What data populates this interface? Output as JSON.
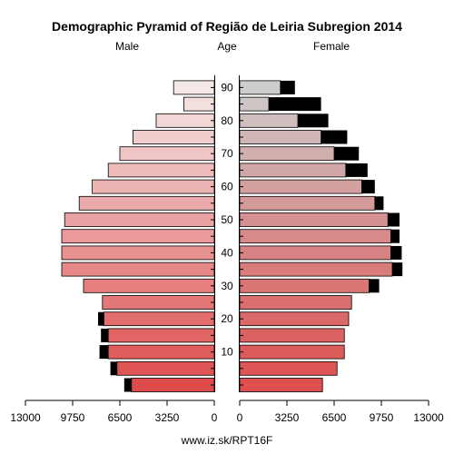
{
  "chart_data": {
    "type": "bar",
    "title": "Demographic Pyramid of Região de Leiria Subregion 2014",
    "left_label": "Male",
    "center_label": "Age",
    "right_label": "Female",
    "footer": "www.iz.sk/RPT16F",
    "x_max": 13000,
    "x_ticks": [
      13000,
      9750,
      6500,
      3250,
      0
    ],
    "x_tick_labels_male": [
      "13000",
      "9750",
      "6500",
      "3250",
      "0"
    ],
    "x_tick_labels_female": [
      "0",
      "3250",
      "6500",
      "9750",
      "13000"
    ],
    "age_ticks": [
      "10",
      "20",
      "30",
      "40",
      "50",
      "60",
      "70",
      "80",
      "90"
    ],
    "categories": [
      "0-4",
      "5-9",
      "10-14",
      "15-19",
      "20-24",
      "25-29",
      "30-34",
      "35-39",
      "40-44",
      "45-49",
      "50-54",
      "55-59",
      "60-64",
      "65-69",
      "70-74",
      "75-79",
      "80-84",
      "85-89",
      "90+"
    ],
    "male_main": [
      5700,
      6700,
      7300,
      7300,
      7600,
      7700,
      9000,
      10500,
      10500,
      10500,
      10300,
      9300,
      8400,
      7300,
      6500,
      5600,
      4000,
      2100,
      2800
    ],
    "male_excess": [
      500,
      450,
      600,
      500,
      400,
      0,
      0,
      0,
      0,
      0,
      0,
      0,
      0,
      0,
      0,
      0,
      0,
      0,
      0
    ],
    "male_total": [
      6200,
      7150,
      7900,
      7800,
      8000,
      7700,
      9000,
      10500,
      10500,
      10500,
      10300,
      9300,
      8400,
      7300,
      6500,
      5600,
      4000,
      2100,
      2800
    ],
    "female_main": [
      5700,
      6700,
      7200,
      7200,
      7500,
      7700,
      8900,
      10500,
      10400,
      10400,
      10200,
      9300,
      8400,
      7300,
      6500,
      5600,
      4000,
      2000,
      2800
    ],
    "female_excess": [
      0,
      0,
      0,
      0,
      0,
      0,
      700,
      700,
      750,
      600,
      800,
      600,
      900,
      1500,
      1700,
      1800,
      2100,
      3600,
      1000
    ],
    "female_total": [
      5700,
      6700,
      7200,
      7200,
      7500,
      7700,
      9600,
      11200,
      11150,
      11000,
      11000,
      9900,
      9300,
      8800,
      8200,
      7400,
      6100,
      5600,
      3800
    ]
  }
}
